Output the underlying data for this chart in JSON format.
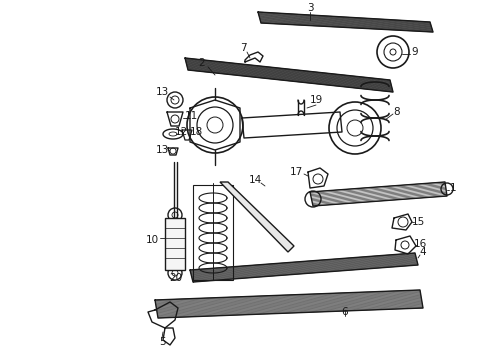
{
  "background_color": "#ffffff",
  "line_color": "#1a1a1a",
  "fig_width": 4.9,
  "fig_height": 3.6,
  "dpi": 100
}
